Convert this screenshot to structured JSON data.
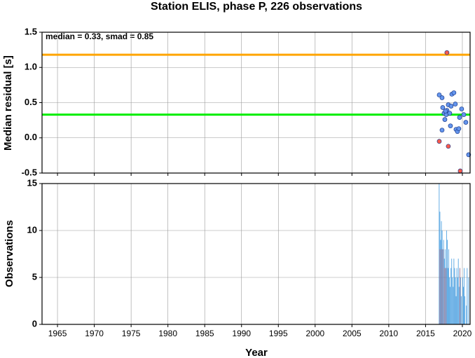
{
  "chart_data": [
    {
      "type": "scatter",
      "title": "Station ELIS, phase P, 226 observations",
      "ylabel": "Median residual [s]",
      "annotation": "median = 0.33, smad = 0.85",
      "xlim": [
        1962.9,
        2021.05
      ],
      "xticks": [
        1965,
        1970,
        1975,
        1980,
        1985,
        1990,
        1995,
        2000,
        2005,
        2010,
        2015,
        2020
      ],
      "ylim": [
        -0.5,
        1.5
      ],
      "yticks": [
        -0.5,
        {
          "value": 0,
          "label": "0.0"
        },
        0.5,
        {
          "value": 1,
          "label": "1.0"
        },
        1.5
      ],
      "grid": true,
      "reference_lines": [
        {
          "value": 0.33,
          "color": "#00ee00"
        },
        {
          "value": 1.18,
          "color": "#ffa500"
        }
      ],
      "series": [
        {
          "color": "#6495ed",
          "x": [
            2016.86,
            2017.24,
            2017.33,
            2017.52,
            2017.62,
            2017.81,
            2017.9,
            2018.09,
            2018.28,
            2018.47,
            2018.57,
            2018.85,
            2019.04,
            2019.14,
            2019.33,
            2019.52,
            2019.62,
            2019.9,
            2020.19,
            2020.47,
            2017.24,
            2018.38,
            2017.71,
            2020.85
          ],
          "values": [
            0.61,
            0.57,
            0.43,
            0.35,
            0.26,
            0.33,
            0.39,
            0.47,
            0.35,
            0.45,
            0.62,
            0.64,
            0.48,
            0.12,
            0.09,
            0.13,
            0.29,
            0.41,
            0.33,
            0.22,
            0.11,
            0.17,
            0.38,
            -0.24
          ]
        },
        {
          "color": "#ff5a4a",
          "x": [
            2017.9,
            2016.86,
            2018.09,
            2019.71
          ],
          "values": [
            1.21,
            -0.05,
            -0.12,
            -0.47
          ]
        }
      ]
    },
    {
      "type": "histogram",
      "xlabel": "Year",
      "ylabel": "Observations",
      "xlim": [
        1962.9,
        2021.05
      ],
      "xticks": [
        1965,
        1970,
        1975,
        1980,
        1985,
        1990,
        1995,
        2000,
        2005,
        2010,
        2015,
        2020
      ],
      "ylim": [
        0,
        15
      ],
      "yticks": [
        0,
        5,
        10,
        15
      ],
      "grid": true,
      "bins": [
        2016.8,
        2016.9,
        2017.0,
        2017.1,
        2017.2,
        2017.3,
        2017.4,
        2017.5,
        2017.6,
        2017.7,
        2017.8,
        2017.9,
        2018.0,
        2018.1,
        2018.2,
        2018.3,
        2018.4,
        2018.5,
        2018.6,
        2018.7,
        2018.8,
        2018.9,
        2019.0,
        2019.1,
        2019.2,
        2019.3,
        2019.4,
        2019.5,
        2019.6,
        2019.7,
        2019.8,
        2019.9,
        2020.0,
        2020.1,
        2020.2,
        2020.3,
        2020.4,
        2020.5,
        2020.6,
        2020.7,
        2020.8,
        2020.9
      ],
      "series": [
        {
          "color": "#4a9fe0",
          "values": [
            15,
            12,
            9,
            11,
            10,
            8,
            9,
            7,
            8,
            6,
            10,
            9,
            6,
            8,
            5,
            4,
            6,
            7,
            5,
            4,
            7,
            6,
            5,
            3,
            6,
            5,
            7,
            4,
            6,
            5,
            3,
            0,
            5,
            4,
            6,
            3,
            0,
            2,
            6,
            0,
            5
          ]
        },
        {
          "color": "#c0303a",
          "values": [
            0,
            8,
            0,
            8,
            0,
            8,
            0,
            6,
            0,
            6,
            0,
            0,
            0,
            0,
            0,
            0,
            0,
            0,
            0,
            0,
            0,
            0,
            0,
            0,
            0,
            0,
            0,
            0,
            6,
            0,
            0,
            0,
            0,
            0,
            0,
            0,
            0,
            0,
            0,
            0,
            0
          ]
        }
      ]
    }
  ]
}
